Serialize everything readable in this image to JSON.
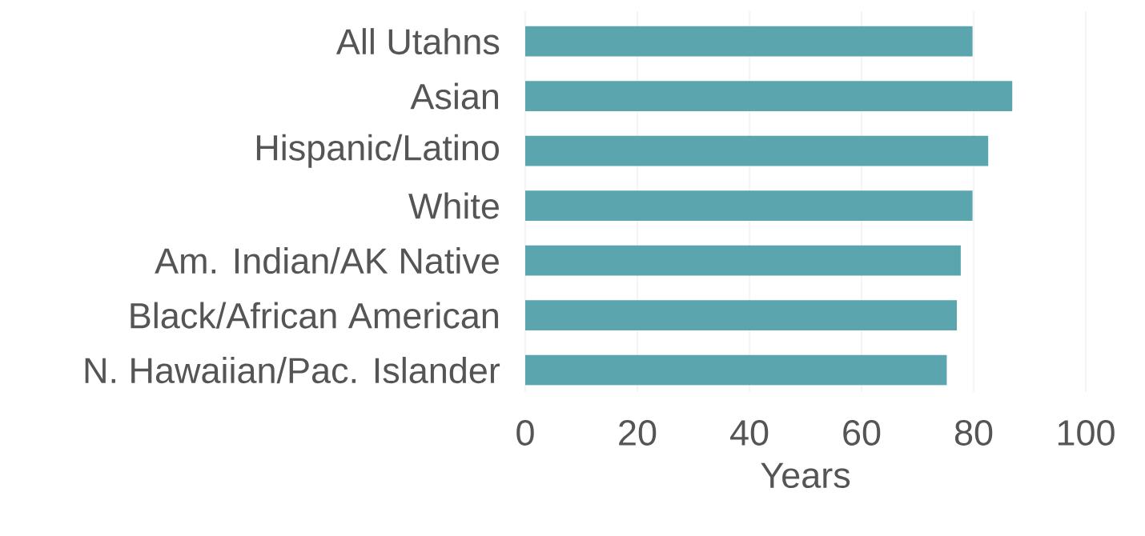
{
  "chart_data": {
    "type": "bar",
    "orientation": "horizontal",
    "xlabel": "Years",
    "categories": [
      "All Utahns",
      "Asian",
      "Hispanic/Latino",
      "White",
      "Am. Indian/AK Native",
      "Black/African American",
      "N. Hawaiian/Pac. Islander"
    ],
    "values": [
      79.8,
      86.9,
      82.6,
      79.8,
      77.7,
      77.0,
      75.2
    ],
    "color": "#5ba5ae",
    "xlim": [
      0,
      100
    ],
    "xticks": [
      0,
      20,
      40,
      60,
      80,
      100
    ],
    "grid": "x"
  }
}
